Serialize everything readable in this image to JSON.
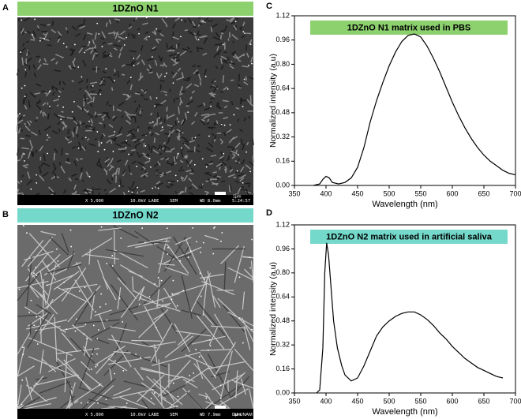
{
  "panels": [
    {
      "letter": "A",
      "title": "1DZnO N1",
      "info": [
        "X 5,000",
        "10.0kV LABE",
        "SEM",
        "WD 8.0mm",
        "5:24:57"
      ],
      "scale": "1μm",
      "title_color": "#8dd16f"
    },
    {
      "letter": "B",
      "title": "1DZnO N2",
      "info": [
        "X 5,000",
        "10.0kV LABE",
        "SEM",
        "WD 7.9mm"
      ],
      "scale": "1μm",
      "lab": "IIM-UNAM",
      "title_color": "#74d8ca"
    }
  ],
  "chart_data": [
    {
      "type": "line",
      "label": "C",
      "title": "1DZnO N1 matrix used in PBS",
      "title_color": "#8dd16f",
      "x_label": "Wavelength (nm)",
      "y_label": "Normalized intensity (a.u)",
      "color": "#000000",
      "x": [
        380,
        390,
        395,
        400,
        405,
        410,
        420,
        430,
        440,
        450,
        460,
        470,
        480,
        490,
        500,
        510,
        520,
        530,
        540,
        550,
        560,
        570,
        580,
        590,
        600,
        610,
        620,
        630,
        640,
        650,
        660,
        670,
        680,
        690,
        700
      ],
      "values": [
        0.0,
        0.01,
        0.04,
        0.06,
        0.05,
        0.02,
        0.01,
        0.02,
        0.05,
        0.12,
        0.25,
        0.42,
        0.56,
        0.68,
        0.79,
        0.88,
        0.95,
        0.99,
        1.0,
        0.98,
        0.92,
        0.84,
        0.75,
        0.65,
        0.55,
        0.46,
        0.38,
        0.31,
        0.25,
        0.2,
        0.16,
        0.13,
        0.1,
        0.08,
        0.07
      ],
      "xlim": [
        350,
        700
      ],
      "xticks": [
        350,
        400,
        450,
        500,
        550,
        600,
        650,
        700
      ],
      "ylim": [
        0,
        1.12
      ],
      "yticks": [
        {
          "value": 0,
          "label": "0.00"
        },
        0.16,
        0.32,
        0.48,
        0.64,
        {
          "value": 0.8,
          "label": "0.80"
        },
        0.96,
        1.12
      ]
    },
    {
      "type": "line",
      "label": "D",
      "title": "1DZnO N2 matrix used in artificial saliva",
      "title_color": "#74d8ca",
      "x_label": "Wavelength (nm)",
      "y_label": "Normalized intensity (a.u)",
      "color": "#000000",
      "x": [
        385,
        390,
        395,
        398,
        401,
        404,
        408,
        412,
        418,
        425,
        430,
        440,
        450,
        460,
        470,
        480,
        490,
        500,
        510,
        520,
        530,
        540,
        550,
        560,
        570,
        580,
        590,
        600,
        610,
        620,
        630,
        640,
        650,
        660,
        670,
        680
      ],
      "values": [
        0.0,
        0.02,
        0.3,
        0.8,
        1.0,
        0.92,
        0.7,
        0.48,
        0.3,
        0.18,
        0.12,
        0.08,
        0.1,
        0.18,
        0.28,
        0.38,
        0.44,
        0.48,
        0.51,
        0.53,
        0.54,
        0.54,
        0.52,
        0.49,
        0.45,
        0.4,
        0.36,
        0.31,
        0.27,
        0.23,
        0.2,
        0.17,
        0.15,
        0.13,
        0.11,
        0.1
      ],
      "xlim": [
        350,
        700
      ],
      "xticks": [
        350,
        400,
        450,
        500,
        550,
        600,
        650,
        700
      ],
      "ylim": [
        0,
        1.12
      ],
      "yticks": [
        {
          "value": 0,
          "label": "0.00"
        },
        0.16,
        0.32,
        0.48,
        0.64,
        {
          "value": 0.8,
          "label": "0.80"
        },
        0.96,
        1.12
      ]
    }
  ]
}
